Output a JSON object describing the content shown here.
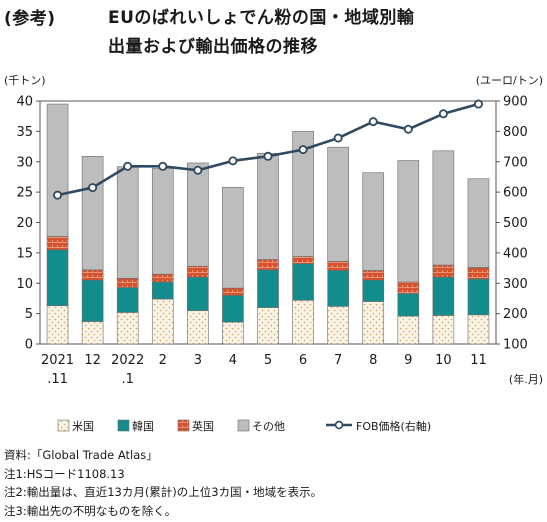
{
  "header": {
    "ref_label": "(参考)",
    "title_line1": "EUのばれいしょでん粉の国・地域別輸",
    "title_line2": "出量および輸出価格の推移"
  },
  "chart_data": {
    "type": "bar",
    "stacked": true,
    "categories": [
      "2021\n.11",
      "12",
      "2022\n.1",
      "2",
      "3",
      "4",
      "5",
      "6",
      "7",
      "8",
      "9",
      "10",
      "11"
    ],
    "x_unit_label": "(年.月)",
    "y_left": {
      "unit_label": "(千トン)",
      "min": 0,
      "max": 40,
      "step": 5
    },
    "y_right": {
      "unit_label": "(ユーロ/トン)",
      "min": 100,
      "max": 900,
      "step": 100
    },
    "series": [
      {
        "name": "米国",
        "values": [
          6.3,
          3.7,
          5.2,
          7.4,
          5.5,
          3.6,
          6.0,
          7.2,
          6.2,
          7.0,
          4.6,
          4.7,
          4.8
        ],
        "color": "#fbf3e4"
      },
      {
        "name": "韓国",
        "values": [
          9.2,
          6.8,
          4.1,
          2.8,
          5.5,
          4.4,
          6.2,
          6.0,
          5.9,
          3.5,
          3.7,
          6.3,
          5.9
        ],
        "color": "#138c8e"
      },
      {
        "name": "英国",
        "values": [
          2.2,
          1.7,
          1.5,
          1.3,
          1.8,
          1.2,
          1.7,
          1.2,
          1.5,
          1.6,
          1.9,
          2.0,
          1.9
        ],
        "color": "#d5532e"
      },
      {
        "name": "その他",
        "values": [
          21.8,
          18.7,
          18.4,
          17.4,
          17.0,
          16.6,
          17.5,
          20.6,
          18.8,
          16.1,
          20.0,
          18.8,
          14.6
        ],
        "color": "#bdbdbd"
      }
    ],
    "line_series": {
      "name": "FOB価格(右軸)",
      "axis": "right",
      "values": [
        590,
        615,
        685,
        685,
        672,
        703,
        718,
        740,
        778,
        832,
        807,
        858,
        890
      ],
      "color": "#2e4a62"
    },
    "legend_placement": "bottom"
  },
  "notes": [
    "資料:「Global Trade Atlas」",
    "注1:HSコード1108.13",
    "注2:輸出量は、直近13カ月(累計)の上位3カ国・地域を表示。",
    "注3:輸出先の不明なものを除く。"
  ]
}
